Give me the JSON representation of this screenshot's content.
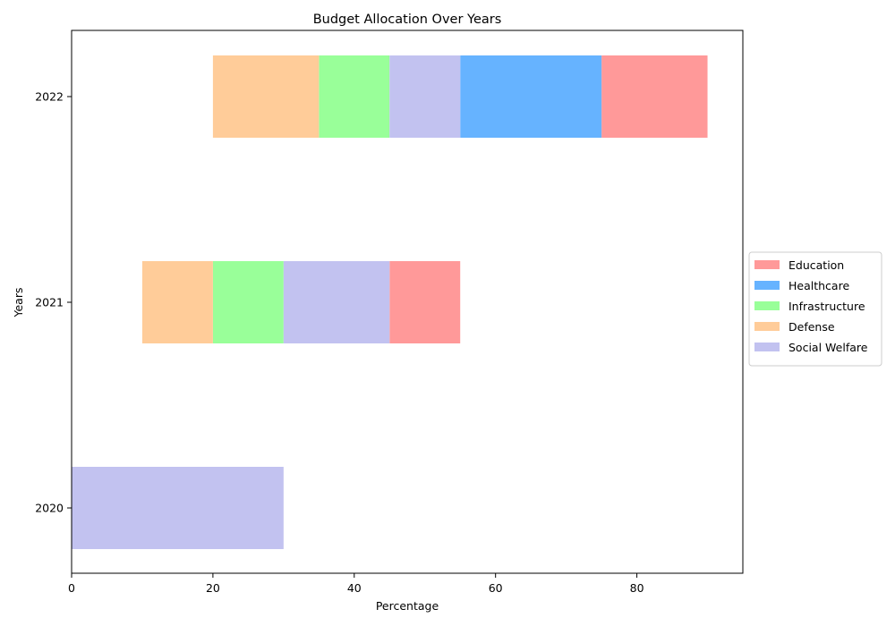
{
  "chart_data": {
    "type": "bar",
    "orientation": "horizontal",
    "stacked": true,
    "title": "Budget Allocation Over Years",
    "xlabel": "Percentage",
    "ylabel": "Years",
    "xlim": [
      0,
      95
    ],
    "xticks": [
      0,
      20,
      40,
      60,
      80
    ],
    "categories": [
      "2020",
      "2021",
      "2022"
    ],
    "legend": {
      "placement": "center-right-outside"
    },
    "grid": false,
    "series": [
      {
        "name": "Education",
        "color": "#ff9999",
        "segments": [
          null,
          {
            "start": 45,
            "end": 55
          },
          {
            "start": 75,
            "end": 90
          }
        ]
      },
      {
        "name": "Healthcare",
        "color": "#66b3ff",
        "segments": [
          null,
          null,
          {
            "start": 55,
            "end": 75
          }
        ]
      },
      {
        "name": "Infrastructure",
        "color": "#99ff99",
        "segments": [
          null,
          {
            "start": 20,
            "end": 30
          },
          {
            "start": 35,
            "end": 45
          }
        ]
      },
      {
        "name": "Defense",
        "color": "#ffcc99",
        "segments": [
          null,
          {
            "start": 10,
            "end": 20
          },
          {
            "start": 20,
            "end": 35
          }
        ]
      },
      {
        "name": "Social Welfare",
        "color": "#c2c2f0",
        "segments": [
          {
            "start": 0,
            "end": 30
          },
          {
            "start": 30,
            "end": 45
          },
          {
            "start": 45,
            "end": 55
          }
        ]
      }
    ]
  }
}
